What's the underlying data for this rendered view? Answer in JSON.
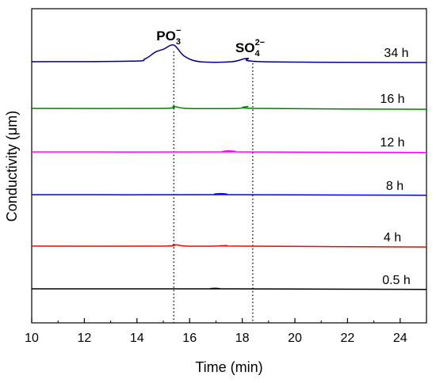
{
  "chart_data": {
    "type": "line",
    "xlabel": "Time (min)",
    "ylabel": "Conductivity (μm)",
    "xlim": [
      10,
      25
    ],
    "x_ticks": [
      "10",
      "12",
      "14",
      "16",
      "18",
      "20",
      "22",
      "24"
    ],
    "y_tick_labels_shown": false,
    "grid": false,
    "markers": [
      {
        "x": 15.4,
        "label": "PO",
        "sub": "3",
        "sup": "−"
      },
      {
        "x": 18.4,
        "label": "SO",
        "sub": "4",
        "sup": "2−"
      }
    ],
    "series": [
      {
        "name": "0.5 h",
        "color": "#000000",
        "x": [
          10,
          16.5,
          17.0,
          17.5,
          25
        ],
        "y": [
          0,
          0,
          0.02,
          0,
          -0.02
        ]
      },
      {
        "name": "4 h",
        "color": "#ff0000",
        "x": [
          10,
          14.9,
          15.4,
          15.9,
          17.0,
          17.4,
          17.8,
          25
        ],
        "y": [
          0,
          0,
          0.05,
          0,
          0,
          0.02,
          0,
          -0.03
        ]
      },
      {
        "name": "8 h",
        "color": "#0000ff",
        "x": [
          10,
          16.8,
          17.2,
          17.6,
          25
        ],
        "y": [
          0,
          0,
          0.04,
          0,
          -0.02
        ]
      },
      {
        "name": "12 h",
        "color": "#ff00ff",
        "x": [
          10,
          17.1,
          17.5,
          17.9,
          25
        ],
        "y": [
          0,
          0,
          0.04,
          0,
          -0.02
        ]
      },
      {
        "name": "16 h",
        "color": "#008000",
        "x": [
          10,
          14.9,
          15.4,
          15.9,
          17.8,
          18.2,
          18.6,
          25
        ],
        "y": [
          0,
          0,
          0.07,
          0,
          0,
          0.07,
          0,
          -0.03
        ]
      },
      {
        "name": "34 h",
        "color": "#00008b",
        "x": [
          10,
          13.8,
          14.3,
          14.7,
          15.0,
          15.4,
          15.8,
          16.4,
          17.6,
          18.2,
          18.8,
          25
        ],
        "y": [
          0,
          0.02,
          0.1,
          0.35,
          0.45,
          0.6,
          0.2,
          0,
          0,
          0.12,
          0,
          -0.03
        ]
      }
    ]
  }
}
